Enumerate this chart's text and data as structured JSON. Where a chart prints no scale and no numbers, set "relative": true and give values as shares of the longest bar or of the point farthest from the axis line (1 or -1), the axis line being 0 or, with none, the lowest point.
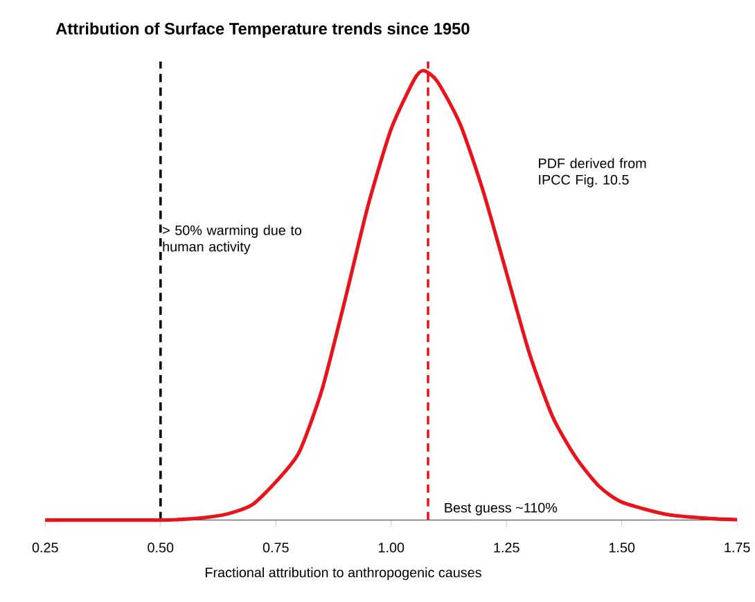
{
  "chart_data": {
    "type": "line",
    "title": "Attribution of Surface Temperature trends since 1950",
    "xlabel": "Fractional attribution to anthropogenic causes",
    "relative": true,
    "x": [
      0.25,
      0.5,
      0.55,
      0.6,
      0.65,
      0.7,
      0.75,
      0.8,
      0.85,
      0.9,
      0.95,
      1.0,
      1.05,
      1.07,
      1.1,
      1.15,
      1.2,
      1.25,
      1.3,
      1.35,
      1.4,
      1.45,
      1.5,
      1.6,
      1.7,
      1.75
    ],
    "series": [
      {
        "color": "#e8141c",
        "values": [
          0,
          0,
          0.002,
          0.006,
          0.015,
          0.035,
          0.085,
          0.15,
          0.29,
          0.49,
          0.7,
          0.87,
          0.98,
          1,
          0.976,
          0.88,
          0.73,
          0.55,
          0.37,
          0.23,
          0.14,
          0.076,
          0.04,
          0.012,
          0.003,
          0.001
        ]
      }
    ],
    "xlim": [
      0.25,
      1.75
    ],
    "xticks": [
      {
        "value": 0.25,
        "label": "0.25"
      },
      {
        "value": 0.5,
        "label": "0.50"
      },
      {
        "value": 0.75,
        "label": "0.75"
      },
      {
        "value": 1.0,
        "label": "1.00"
      },
      {
        "value": 1.25,
        "label": "1.25"
      },
      {
        "value": 1.5,
        "label": "1.50"
      },
      {
        "value": 1.75,
        "label": "1.75"
      }
    ],
    "ref_lines": [
      {
        "axis": "x",
        "value": 0.5,
        "label": "> 50% warming due to human activity",
        "color": "#000000",
        "line_style": "dashed"
      },
      {
        "axis": "x",
        "value": 1.08,
        "label": "Best guess ~110%",
        "color": "#e8141c",
        "line_style": "dashed"
      }
    ],
    "annotations": [
      "PDF derived from IPCC Fig. 10.5"
    ],
    "grid": false,
    "marker": "none",
    "line_style": "solid"
  }
}
